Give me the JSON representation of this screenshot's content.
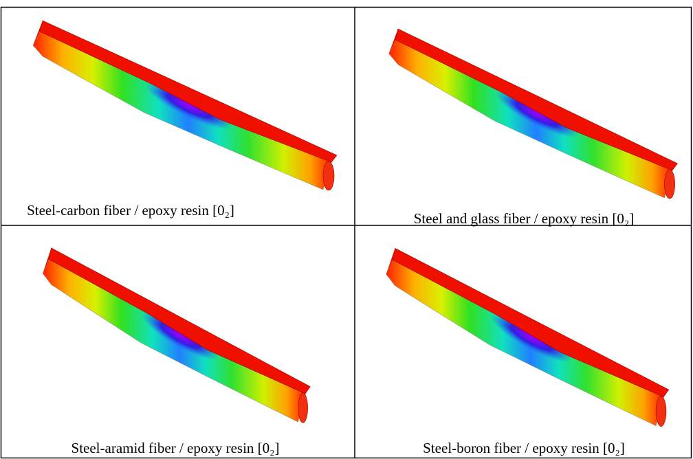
{
  "panels": [
    {
      "caption": "Steel-carbon fiber / epoxy resin [0₂]"
    },
    {
      "caption": "Steel and glass fiber / epoxy resin [0₂]"
    },
    {
      "caption": "Steel-aramid fiber / epoxy resin [0₂]"
    },
    {
      "caption": "Steel-boron fiber / epoxy resin [0₂]"
    }
  ]
}
